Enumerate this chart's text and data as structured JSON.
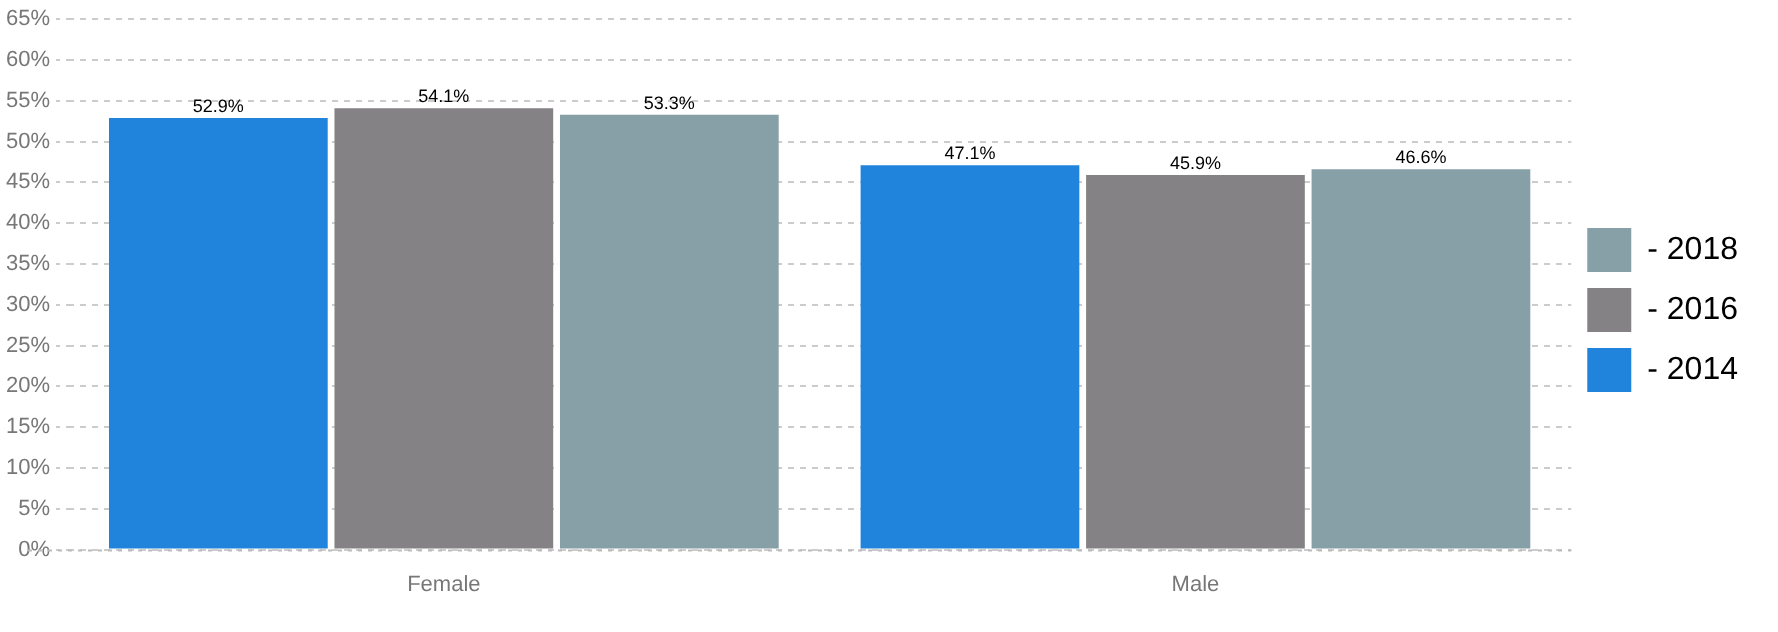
{
  "chart_data": {
    "type": "bar",
    "categories": [
      "Female",
      "Male"
    ],
    "series": [
      {
        "name": "- 2014",
        "color": "#2084dc",
        "values": [
          52.9,
          47.1
        ]
      },
      {
        "name": "- 2016",
        "color": "#848285",
        "values": [
          54.1,
          45.9
        ]
      },
      {
        "name": "- 2018",
        "color": "#87a0a8",
        "values": [
          53.3,
          46.6
        ]
      }
    ],
    "ylim": [
      0,
      65
    ],
    "yticks": [
      {
        "value": 0,
        "label": "0%"
      },
      {
        "value": 5,
        "label": "5%"
      },
      {
        "value": 10,
        "label": "10%"
      },
      {
        "value": 15,
        "label": "15%"
      },
      {
        "value": 20,
        "label": "20%"
      },
      {
        "value": 25,
        "label": "25%"
      },
      {
        "value": 30,
        "label": "30%"
      },
      {
        "value": 35,
        "label": "35%"
      },
      {
        "value": 40,
        "label": "40%"
      },
      {
        "value": 45,
        "label": "45%"
      },
      {
        "value": 50,
        "label": "50%"
      },
      {
        "value": 55,
        "label": "55%"
      },
      {
        "value": 60,
        "label": "60%"
      },
      {
        "value": 65,
        "label": "65%"
      }
    ],
    "value_labels": [
      [
        "52.9%",
        "47.1%"
      ],
      [
        "54.1%",
        "45.9%"
      ],
      [
        "53.3%",
        "46.6%"
      ]
    ],
    "grid": "y",
    "legend": "right"
  }
}
